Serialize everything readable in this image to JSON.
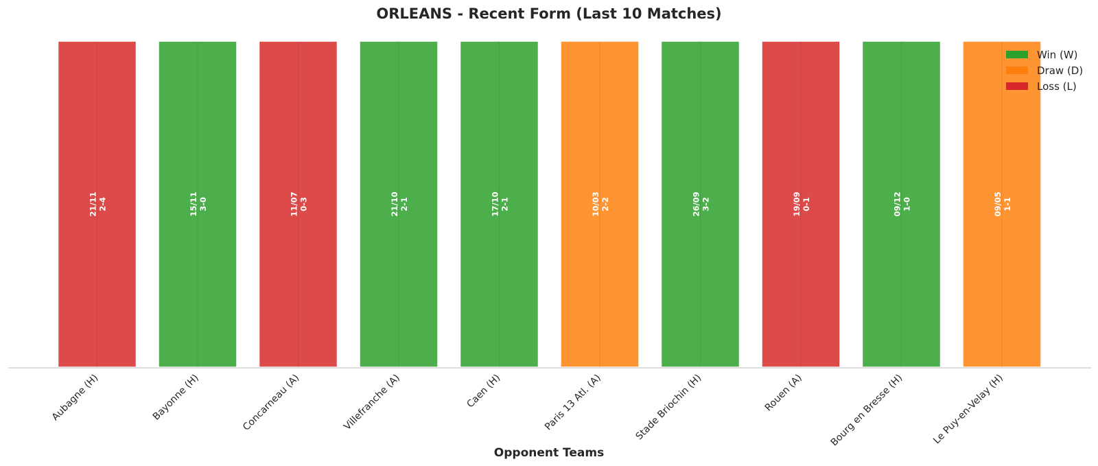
{
  "chart_data": {
    "type": "bar",
    "title": "ORLEANS - Recent Form (Last 10 Matches)",
    "xlabel": "Opponent Teams",
    "ylabel": "",
    "ylim": [
      0,
      1
    ],
    "grid": false,
    "legend_position": "top-right",
    "legend": [
      {
        "key": "W",
        "label": "Win (W)",
        "color": "#2ca02c"
      },
      {
        "key": "D",
        "label": "Draw (D)",
        "color": "#ff7f0e"
      },
      {
        "key": "L",
        "label": "Loss (L)",
        "color": "#d62728"
      }
    ],
    "categories": [
      "Aubagne (H)",
      "Bayonne (H)",
      "Concarneau (A)",
      "Villefranche (A)",
      "Caen (H)",
      "Paris 13 Atl. (A)",
      "Stade Briochin (H)",
      "Rouen (A)",
      "Bourg en Bresse (H)",
      "Le Puy-en-Velay (H)"
    ],
    "values": [
      1,
      1,
      1,
      1,
      1,
      1,
      1,
      1,
      1,
      1
    ],
    "results": [
      "L",
      "W",
      "L",
      "W",
      "W",
      "D",
      "W",
      "L",
      "W",
      "D"
    ],
    "dates": [
      "21/11",
      "15/11",
      "11/07",
      "21/10",
      "17/10",
      "10/03",
      "26/09",
      "19/09",
      "09/12",
      "09/05"
    ],
    "scores": [
      "2-4",
      "3-0",
      "0-3",
      "2-1",
      "2-1",
      "2-2",
      "3-2",
      "0-1",
      "1-0",
      "1-1"
    ],
    "bar_colors": {
      "W": "#4caf4c",
      "D": "#ff9433",
      "L": "#dd4a4a"
    }
  }
}
